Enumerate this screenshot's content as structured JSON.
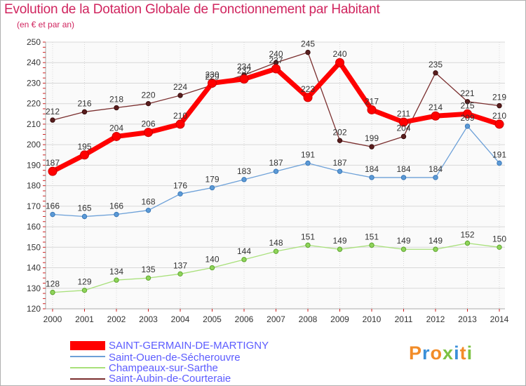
{
  "chart_data": {
    "type": "line",
    "title": "Evolution de la Dotation Globale de Fonctionnement par Habitant",
    "subtitle": "(en € et par an)",
    "x": [
      "2000",
      "2001",
      "2002",
      "2003",
      "2004",
      "2005",
      "2006",
      "2007",
      "2008",
      "2009",
      "2010",
      "2011",
      "2012",
      "2013",
      "2014"
    ],
    "ylim": [
      120,
      250
    ],
    "yticks": [
      120,
      130,
      140,
      150,
      160,
      170,
      180,
      190,
      200,
      210,
      220,
      230,
      240,
      250
    ],
    "grid": true,
    "series": [
      {
        "name": "SAINT-GERMAIN-DE-MARTIGNY",
        "color": "#ff0000",
        "values": [
          187,
          195,
          204,
          206,
          210,
          230,
          232,
          237,
          223,
          240,
          217,
          211,
          214,
          215,
          210
        ]
      },
      {
        "name": "Saint-Ouen-de-Sécherouvre",
        "color": "#6ca0d8",
        "values": [
          166,
          165,
          166,
          168,
          176,
          179,
          183,
          187,
          191,
          187,
          184,
          184,
          184,
          209,
          191
        ]
      },
      {
        "name": "Champeaux-sur-Sarthe",
        "color": "#a8e07a",
        "values": [
          128,
          129,
          134,
          135,
          137,
          140,
          144,
          148,
          151,
          149,
          151,
          149,
          149,
          152,
          150
        ]
      },
      {
        "name": "Saint-Aubin-de-Courteraie",
        "color": "#7a2e2e",
        "values": [
          212,
          216,
          218,
          220,
          224,
          229,
          234,
          240,
          245,
          202,
          199,
          204,
          235,
          221,
          219
        ]
      }
    ]
  },
  "legend": {
    "items": [
      {
        "label": "SAINT-GERMAIN-DE-MARTIGNY",
        "color": "#5c5cff"
      },
      {
        "label": "Saint-Ouen-de-Sécherouvre",
        "color": "#5c5cff"
      },
      {
        "label": "Champeaux-sur-Sarthe",
        "color": "#5c5cff"
      },
      {
        "label": "Saint-Aubin-de-Courteraie",
        "color": "#5c5cff"
      }
    ]
  },
  "logo": {
    "text": "Proxiti"
  }
}
